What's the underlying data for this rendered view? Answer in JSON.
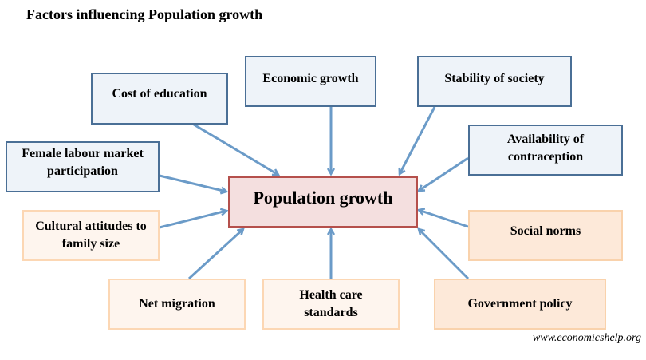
{
  "title": "Factors influencing Population growth",
  "center": "Population growth",
  "factors": {
    "cost_of_education": "Cost of education",
    "economic_growth": "Economic growth",
    "stability_of_society": "Stability of society",
    "availability_of_contraception": "Availability of contraception",
    "female_labour": "Female labour market participation",
    "cultural_attitudes": "Cultural attitudes to family size",
    "net_migration": "Net migration",
    "health_care": "Health care standards",
    "government_policy": "Government policy",
    "social_norms": "Social norms"
  },
  "credit": "www.economicshelp.org",
  "colors": {
    "arrow": "#6b9bc8",
    "blue_border": "#4a6f96",
    "center_border": "#b5504c"
  }
}
